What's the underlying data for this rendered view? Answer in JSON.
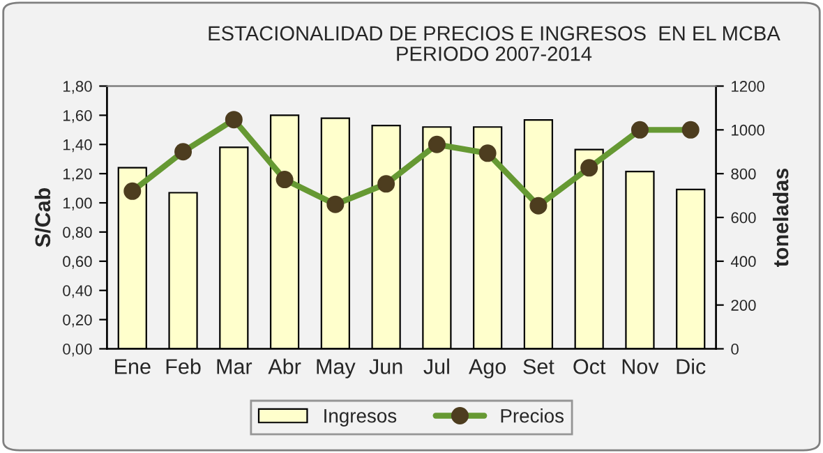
{
  "chart_data": {
    "type": "bar",
    "title": "ESTACIONALIDAD DE PRECIOS E INGRESOS  EN EL MCBA\nPERIODO 2007-2014",
    "ylabel": "S/Cab",
    "y2label": "toneladas",
    "categories": [
      "Ene",
      "Feb",
      "Mar",
      "Abr",
      "May",
      "Jun",
      "Jul",
      "Ago",
      "Set",
      "Oct",
      "Nov",
      "Dic"
    ],
    "series": [
      {
        "name": "Ingresos",
        "axis": "y2",
        "color": "#ffffcc",
        "values": [
          827,
          713,
          920,
          1067,
          1053,
          1020,
          1013,
          1013,
          1045,
          910,
          810,
          728
        ]
      },
      {
        "name": "Precios",
        "type": "line",
        "axis": "y",
        "color": "#669933",
        "values": [
          1.08,
          1.35,
          1.57,
          1.16,
          0.99,
          1.13,
          1.4,
          1.34,
          0.98,
          1.24,
          1.5,
          1.5
        ]
      }
    ],
    "ylim": [
      0,
      1.8
    ],
    "yticks": [
      {
        "value": 0,
        "label": "0,00"
      },
      {
        "value": 0.2,
        "label": "0,20"
      },
      {
        "value": 0.4,
        "label": "0,40"
      },
      {
        "value": 0.6,
        "label": "0,60"
      },
      {
        "value": 0.8,
        "label": "0,80"
      },
      {
        "value": 1.0,
        "label": "1,00"
      },
      {
        "value": 1.2,
        "label": "1,20"
      },
      {
        "value": 1.4,
        "label": "1,40"
      },
      {
        "value": 1.6,
        "label": "1,60"
      },
      {
        "value": 1.8,
        "label": "1,80"
      }
    ],
    "y2lim": [
      0,
      1200
    ],
    "y2ticks": [
      0,
      200,
      400,
      600,
      800,
      1000,
      1200
    ],
    "marker": "circle",
    "legend": "bottom",
    "grid": false
  }
}
